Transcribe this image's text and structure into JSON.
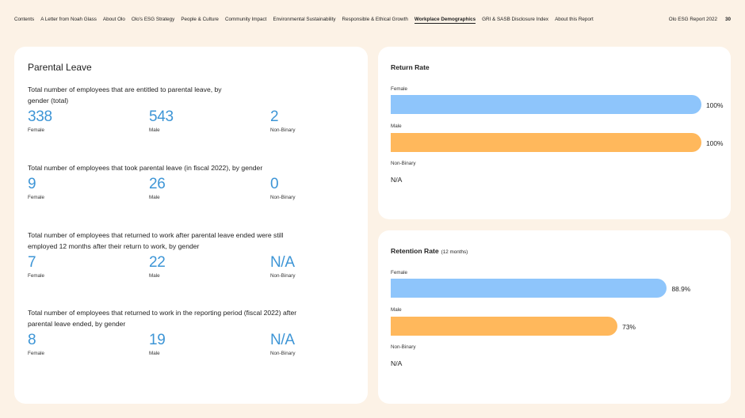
{
  "nav": {
    "links": [
      "Contents",
      "A Letter from Noah Glass",
      "About Olo",
      "Olo's ESG Strategy",
      "People & Culture",
      "Community Impact",
      "Environmental Sustainability",
      "Responsible & Ethical Growth",
      "Workplace Demographics",
      "GRI & SASB Disclosure Index",
      "About this Report"
    ],
    "active": "Workplace Demographics",
    "report_title": "Olo ESG Report 2022",
    "page_number": "30"
  },
  "parental_leave": {
    "title": "Parental Leave",
    "blocks": [
      {
        "question": "Total number of employees that are entitled to parental leave, by gender (total)",
        "stats": [
          {
            "value": "338",
            "label": "Female"
          },
          {
            "value": "543",
            "label": "Male"
          },
          {
            "value": "2",
            "label": "Non-Binary"
          }
        ]
      },
      {
        "question": "Total number of employees that took parental leave (in fiscal 2022), by gender",
        "stats": [
          {
            "value": "9",
            "label": "Female"
          },
          {
            "value": "26",
            "label": "Male"
          },
          {
            "value": "0",
            "label": "Non-Binary"
          }
        ]
      },
      {
        "question": "Total number of employees that returned to work after parental leave ended were still employed 12 months after their return to work, by gender",
        "stats": [
          {
            "value": "7",
            "label": "Female"
          },
          {
            "value": "22",
            "label": "Male"
          },
          {
            "value": "N/A",
            "label": "Non-Binary"
          }
        ]
      },
      {
        "question": "Total number of employees that returned to work in the reporting period (fiscal 2022) after parental leave ended, by gender",
        "stats": [
          {
            "value": "8",
            "label": "Female"
          },
          {
            "value": "19",
            "label": "Male"
          },
          {
            "value": "N/A",
            "label": "Non-Binary"
          }
        ]
      }
    ]
  },
  "return_rate": {
    "title": "Return Rate",
    "rows": [
      {
        "label": "Female",
        "value": "100%",
        "fraction": 1.0,
        "color": "#8ec5fb"
      },
      {
        "label": "Male",
        "value": "100%",
        "fraction": 1.0,
        "color": "#ffb85c"
      },
      {
        "label": "Non-Binary",
        "value": "N/A"
      }
    ]
  },
  "retention_rate": {
    "title": "Retention Rate",
    "subtitle": "(12 months)",
    "rows": [
      {
        "label": "Female",
        "value": "88.9%",
        "fraction": 0.889,
        "color": "#8ec5fb"
      },
      {
        "label": "Male",
        "value": "73%",
        "fraction": 0.73,
        "color": "#ffb85c"
      },
      {
        "label": "Non-Binary",
        "value": "N/A"
      }
    ]
  },
  "colors": {
    "background": "#fcf2e6",
    "stat_blue": "#3d95d6",
    "female_bar": "#8ec5fb",
    "male_bar": "#ffb85c"
  }
}
